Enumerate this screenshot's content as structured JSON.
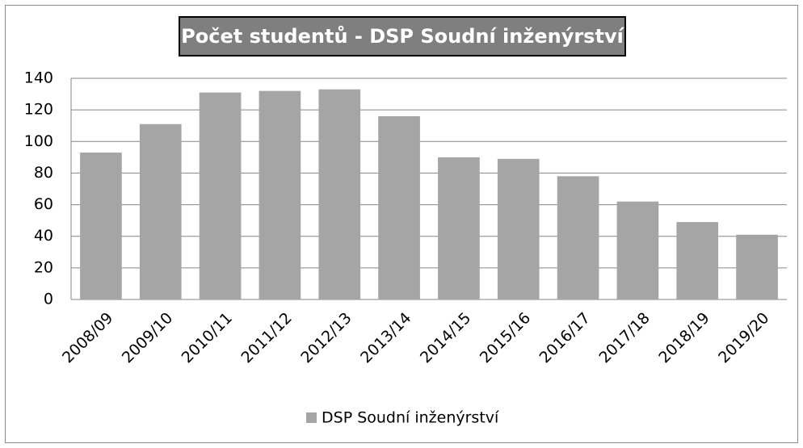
{
  "chart_data": {
    "type": "bar",
    "title": "Počet studentů - DSP Soudní inženýrství",
    "categories": [
      "2008/09",
      "2009/10",
      "2010/11",
      "2011/12",
      "2012/13",
      "2013/14",
      "2014/15",
      "2015/16",
      "2016/17",
      "2017/18",
      "2018/19",
      "2019/20"
    ],
    "series": [
      {
        "name": "DSP Soudní inženýrství",
        "color": "#a5a5a5",
        "values": [
          93,
          111,
          131,
          132,
          133,
          116,
          90,
          89,
          78,
          62,
          49,
          41
        ]
      }
    ],
    "ylim": [
      0,
      140
    ],
    "yticks": [
      0,
      20,
      40,
      60,
      80,
      100,
      120,
      140
    ],
    "grid": true,
    "legend": "bottom"
  }
}
